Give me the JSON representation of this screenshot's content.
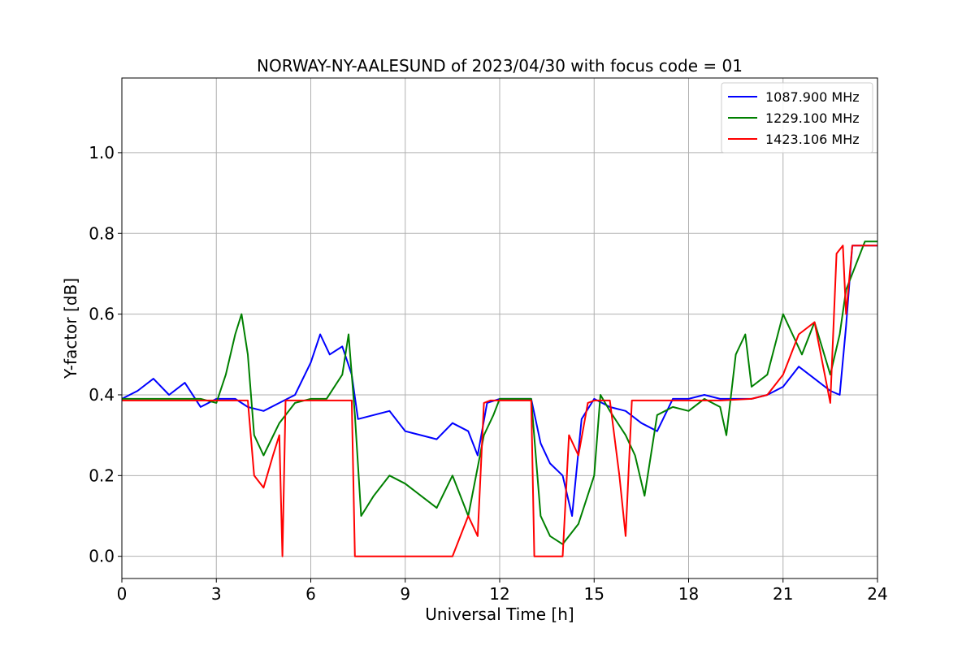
{
  "chart_data": {
    "type": "line",
    "title": "NORWAY-NY-AALESUND of 2023/04/30 with focus code = 01",
    "xlabel": "Universal Time [h]",
    "ylabel": "Y-factor [dB]",
    "xlim": [
      0,
      24
    ],
    "ylim": [
      -0.055,
      1.185
    ],
    "xticks": [
      0,
      3,
      6,
      9,
      12,
      15,
      18,
      21,
      24
    ],
    "xtick_labels": [
      "0",
      "3",
      "6",
      "9",
      "12",
      "15",
      "18",
      "21",
      "24"
    ],
    "yticks": [
      0.0,
      0.2,
      0.4,
      0.6,
      0.8,
      1.0
    ],
    "ytick_labels": [
      "0.0",
      "0.2",
      "0.4",
      "0.6",
      "0.8",
      "1.0"
    ],
    "grid": true,
    "legend_position": "top-right",
    "series": [
      {
        "name": "1087.900 MHz",
        "color": "#0000ff",
        "x": [
          0,
          0.5,
          1.0,
          1.5,
          2.0,
          2.5,
          3.0,
          3.6,
          4.0,
          4.5,
          5.0,
          5.5,
          6.0,
          6.3,
          6.6,
          7.0,
          7.3,
          7.5,
          8.0,
          8.5,
          9.0,
          9.5,
          10.0,
          10.5,
          11.0,
          11.3,
          11.6,
          12.0,
          12.5,
          13.0,
          13.3,
          13.6,
          14.0,
          14.3,
          14.6,
          15.0,
          15.5,
          16.0,
          16.5,
          17.0,
          17.5,
          18.0,
          18.5,
          19.0,
          19.5,
          20.0,
          20.5,
          21.0,
          21.5,
          22.0,
          22.5,
          22.8,
          23.0,
          23.2,
          23.5,
          24.0
        ],
        "y": [
          0.39,
          0.41,
          0.44,
          0.4,
          0.43,
          0.37,
          0.39,
          0.39,
          0.37,
          0.36,
          0.38,
          0.4,
          0.48,
          0.55,
          0.5,
          0.52,
          0.45,
          0.34,
          0.35,
          0.36,
          0.31,
          0.3,
          0.29,
          0.33,
          0.31,
          0.25,
          0.38,
          0.39,
          0.39,
          0.39,
          0.28,
          0.23,
          0.2,
          0.1,
          0.34,
          0.39,
          0.37,
          0.36,
          0.33,
          0.31,
          0.39,
          0.39,
          0.4,
          0.39,
          0.39,
          0.39,
          0.4,
          0.42,
          0.47,
          0.44,
          0.41,
          0.4,
          0.57,
          0.77,
          0.77,
          0.77
        ]
      },
      {
        "name": "1229.100 MHz",
        "color": "#008000",
        "x": [
          0,
          2.0,
          2.5,
          3.0,
          3.3,
          3.6,
          3.8,
          4.0,
          4.2,
          4.5,
          5.0,
          5.5,
          6.0,
          6.5,
          7.0,
          7.2,
          7.4,
          7.6,
          8.0,
          8.5,
          9.0,
          9.5,
          10.0,
          10.5,
          11.0,
          11.5,
          11.8,
          12.0,
          12.5,
          13.0,
          13.3,
          13.6,
          14.0,
          14.5,
          15.0,
          15.2,
          15.5,
          16.0,
          16.3,
          16.6,
          17.0,
          17.5,
          18.0,
          18.5,
          19.0,
          19.2,
          19.5,
          19.8,
          20.0,
          20.5,
          21.0,
          21.3,
          21.6,
          22.0,
          22.5,
          22.8,
          23.0,
          23.3,
          23.6,
          24.0
        ],
        "y": [
          0.39,
          0.39,
          0.39,
          0.38,
          0.45,
          0.55,
          0.6,
          0.5,
          0.3,
          0.25,
          0.33,
          0.38,
          0.39,
          0.39,
          0.45,
          0.55,
          0.35,
          0.1,
          0.15,
          0.2,
          0.18,
          0.15,
          0.12,
          0.2,
          0.1,
          0.3,
          0.35,
          0.39,
          0.39,
          0.39,
          0.1,
          0.05,
          0.03,
          0.08,
          0.2,
          0.4,
          0.36,
          0.3,
          0.25,
          0.15,
          0.35,
          0.37,
          0.36,
          0.39,
          0.37,
          0.3,
          0.5,
          0.55,
          0.42,
          0.45,
          0.6,
          0.55,
          0.5,
          0.58,
          0.45,
          0.55,
          0.66,
          0.72,
          0.78,
          0.78
        ]
      },
      {
        "name": "1423.106 MHz",
        "color": "#ff0000",
        "x": [
          0,
          1.0,
          2.0,
          3.0,
          4.0,
          4.2,
          4.5,
          4.8,
          5.0,
          5.1,
          5.2,
          6.0,
          7.0,
          7.3,
          7.4,
          8.0,
          9.0,
          10.0,
          10.5,
          11.0,
          11.3,
          11.5,
          11.7,
          12.0,
          12.5,
          13.0,
          13.1,
          13.5,
          14.0,
          14.2,
          14.5,
          14.8,
          15.0,
          15.5,
          15.8,
          16.0,
          16.2,
          16.5,
          17.0,
          18.0,
          19.0,
          20.0,
          20.5,
          21.0,
          21.5,
          22.0,
          22.5,
          22.7,
          22.9,
          23.0,
          23.2,
          23.5,
          24.0
        ],
        "y": [
          0.386,
          0.386,
          0.386,
          0.386,
          0.386,
          0.2,
          0.17,
          0.25,
          0.3,
          0.0,
          0.386,
          0.386,
          0.386,
          0.386,
          0.0,
          0.0,
          0.0,
          0.0,
          0.0,
          0.1,
          0.05,
          0.38,
          0.386,
          0.386,
          0.386,
          0.386,
          0.0,
          0.0,
          0.0,
          0.3,
          0.25,
          0.38,
          0.386,
          0.386,
          0.2,
          0.05,
          0.386,
          0.386,
          0.386,
          0.386,
          0.386,
          0.39,
          0.4,
          0.45,
          0.55,
          0.58,
          0.38,
          0.75,
          0.77,
          0.6,
          0.77,
          0.77,
          0.77
        ]
      }
    ]
  }
}
